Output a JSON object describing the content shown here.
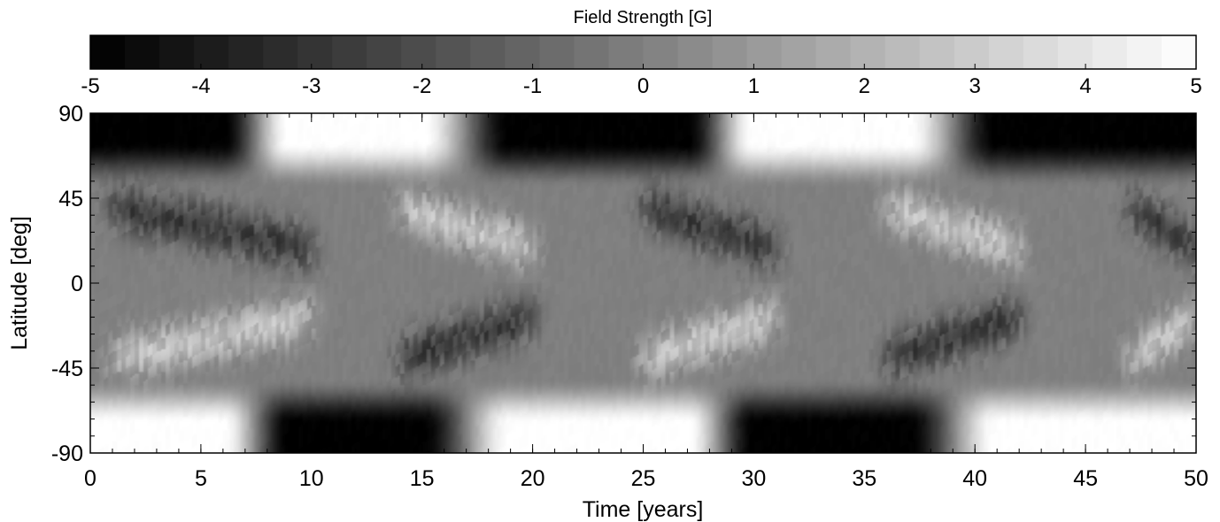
{
  "chart_data": {
    "type": "heatmap",
    "title": "",
    "xlabel": "Time [years]",
    "ylabel": "Latitude [deg]",
    "xlim": [
      0,
      50
    ],
    "ylim": [
      -90,
      90
    ],
    "xticks": [
      "0",
      "5",
      "10",
      "15",
      "20",
      "25",
      "30",
      "35",
      "40",
      "45",
      "50"
    ],
    "yticks": [
      "90",
      "45",
      "0",
      "-45",
      "-90"
    ],
    "colormap": "grayscale",
    "colorbar": {
      "label": "Field Strength [G]",
      "range": [
        -5,
        5
      ],
      "ticks": [
        "-5",
        "-4",
        "-3",
        "-2",
        "-1",
        "0",
        "1",
        "2",
        "3",
        "4",
        "5"
      ],
      "levels": 32,
      "low_color": "#000000",
      "high_color": "#ffffff"
    },
    "polar_field_phases": [
      {
        "years": [
          0,
          6
        ],
        "north": -5,
        "south": 5
      },
      {
        "years": [
          9,
          15
        ],
        "north": 5,
        "south": -5
      },
      {
        "years": [
          19,
          27
        ],
        "north": -5,
        "south": 5
      },
      {
        "years": [
          30,
          37
        ],
        "north": 5,
        "south": -5
      },
      {
        "years": [
          41,
          49
        ],
        "north": -5,
        "south": 5
      }
    ],
    "activity_belts": [
      {
        "years": [
          1,
          10
        ],
        "north": -2.5,
        "south": 2.5
      },
      {
        "years": [
          14,
          20
        ],
        "north": 2.5,
        "south": -2.5
      },
      {
        "years": [
          25,
          31
        ],
        "north": -2.5,
        "south": 2.5
      },
      {
        "years": [
          36,
          42
        ],
        "north": 2.5,
        "south": -2.5
      },
      {
        "years": [
          47,
          50
        ],
        "north": -2.5,
        "south": 2.5
      }
    ]
  }
}
